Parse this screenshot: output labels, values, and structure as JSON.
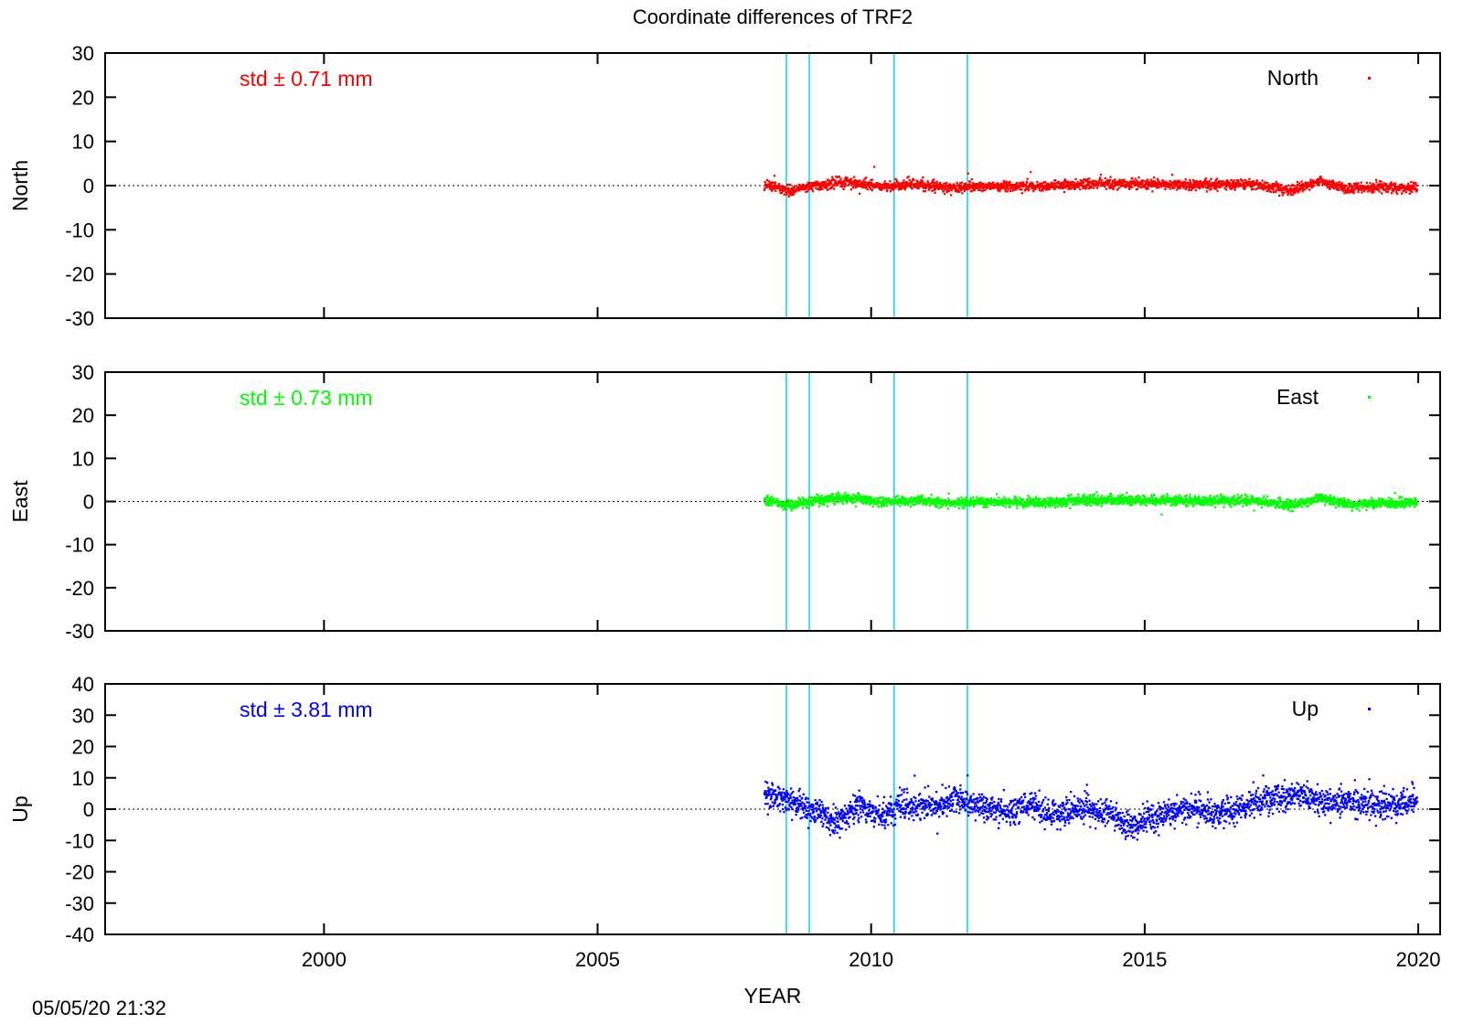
{
  "page": {
    "title": "Coordinate differences of TRF2",
    "xlabel": "YEAR",
    "timestamp": "05/05/20 21:32"
  },
  "chart_data": {
    "type": "scatter",
    "title": "Coordinate differences of TRF2",
    "xlabel": "YEAR",
    "xlim": [
      1996,
      2020.4
    ],
    "xticks": [
      2000,
      2005,
      2010,
      2015,
      2020
    ],
    "vertical_markers": [
      2008.45,
      2008.87,
      2010.42,
      2011.76
    ],
    "marker_color": "#00d8f0",
    "panels": [
      {
        "name": "north",
        "ylabel": "North",
        "ylim": [
          -30,
          30
        ],
        "yticks": [
          -30,
          -20,
          -10,
          0,
          10,
          20,
          30
        ],
        "legend": "North",
        "std_label": "std ± 0.71 mm",
        "color": "#ff0000",
        "x_start": 2008.05,
        "x_end": 2019.98,
        "approx_std": 0.71,
        "trend": [
          [
            2008.05,
            0.5
          ],
          [
            2008.5,
            -1.2
          ],
          [
            2009.0,
            0.3
          ],
          [
            2009.6,
            0.9
          ],
          [
            2010.2,
            -0.3
          ],
          [
            2010.8,
            0.4
          ],
          [
            2011.5,
            -0.6
          ],
          [
            2012.0,
            -0.1
          ],
          [
            2013.0,
            -0.2
          ],
          [
            2014.0,
            0.3
          ],
          [
            2015.0,
            0.4
          ],
          [
            2016.0,
            0.2
          ],
          [
            2017.0,
            0.3
          ],
          [
            2017.7,
            -1.0
          ],
          [
            2018.2,
            1.0
          ],
          [
            2018.7,
            -0.7
          ],
          [
            2019.5,
            -0.3
          ],
          [
            2019.98,
            -0.5
          ]
        ]
      },
      {
        "name": "east",
        "ylabel": "East",
        "ylim": [
          -30,
          30
        ],
        "yticks": [
          -30,
          -20,
          -10,
          0,
          10,
          20,
          30
        ],
        "legend": "East",
        "std_label": "std ± 0.73 mm",
        "color": "#00ff00",
        "x_start": 2008.05,
        "x_end": 2019.98,
        "approx_std": 0.73,
        "trend": [
          [
            2008.05,
            0.3
          ],
          [
            2008.5,
            -0.9
          ],
          [
            2009.0,
            0.4
          ],
          [
            2009.6,
            0.9
          ],
          [
            2010.2,
            -0.2
          ],
          [
            2010.8,
            0.3
          ],
          [
            2011.5,
            -0.5
          ],
          [
            2012.0,
            -0.1
          ],
          [
            2013.0,
            -0.3
          ],
          [
            2014.0,
            0.4
          ],
          [
            2015.0,
            0.3
          ],
          [
            2016.0,
            0.2
          ],
          [
            2017.0,
            0.2
          ],
          [
            2017.7,
            -0.9
          ],
          [
            2018.2,
            0.9
          ],
          [
            2018.7,
            -0.6
          ],
          [
            2019.5,
            -0.3
          ],
          [
            2019.98,
            -0.4
          ]
        ]
      },
      {
        "name": "up",
        "ylabel": "Up",
        "ylim": [
          -40,
          40
        ],
        "yticks": [
          -40,
          -30,
          -20,
          -10,
          0,
          10,
          20,
          30,
          40
        ],
        "legend": "Up",
        "std_label": "std ± 3.81 mm",
        "color": "#0000ff",
        "x_start": 2008.05,
        "x_end": 2019.98,
        "approx_std": 3.81,
        "trend": [
          [
            2008.05,
            4.5
          ],
          [
            2008.6,
            2.0
          ],
          [
            2009.0,
            -1.0
          ],
          [
            2009.4,
            -4.0
          ],
          [
            2009.8,
            1.0
          ],
          [
            2010.2,
            -2.0
          ],
          [
            2010.6,
            1.5
          ],
          [
            2011.0,
            1.0
          ],
          [
            2011.6,
            3.5
          ],
          [
            2012.0,
            1.0
          ],
          [
            2012.5,
            -1.0
          ],
          [
            2012.9,
            2.0
          ],
          [
            2013.3,
            -2.0
          ],
          [
            2013.8,
            0.5
          ],
          [
            2014.3,
            -1.0
          ],
          [
            2014.7,
            -6.0
          ],
          [
            2015.1,
            -2.5
          ],
          [
            2015.6,
            0.0
          ],
          [
            2016.0,
            0.0
          ],
          [
            2016.4,
            -2.0
          ],
          [
            2016.9,
            2.0
          ],
          [
            2017.4,
            3.5
          ],
          [
            2017.8,
            5.0
          ],
          [
            2018.2,
            2.0
          ],
          [
            2018.7,
            2.5
          ],
          [
            2019.2,
            1.0
          ],
          [
            2019.6,
            1.5
          ],
          [
            2019.98,
            3.0
          ]
        ]
      }
    ]
  }
}
